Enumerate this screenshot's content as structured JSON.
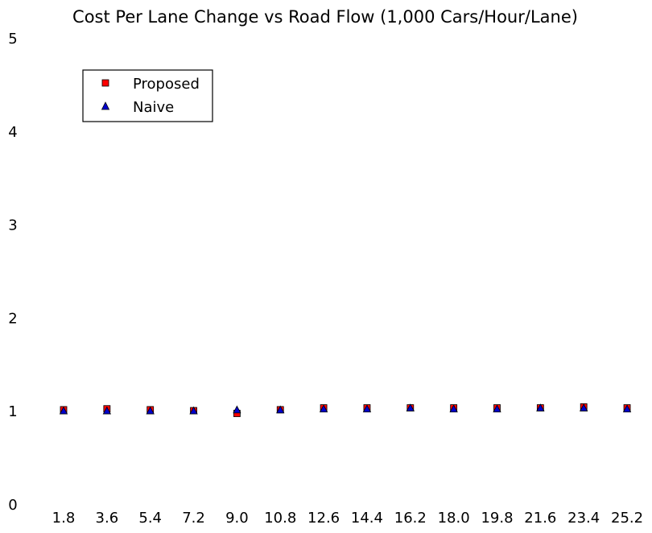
{
  "chart_data": {
    "type": "scatter",
    "title": "Cost Per Lane Change vs Road Flow (1,000 Cars/Hour/Lane)",
    "xlabel": "",
    "ylabel": "",
    "categories": [
      "1.8",
      "3.6",
      "5.4",
      "7.2",
      "9.0",
      "10.8",
      "12.6",
      "14.4",
      "16.2",
      "18.0",
      "19.8",
      "21.6",
      "23.4",
      "25.2"
    ],
    "ylim": [
      0,
      5
    ],
    "yticks": [
      "0",
      "1",
      "2",
      "3",
      "4",
      "5"
    ],
    "grid": false,
    "legend_position": "upper-left",
    "series": [
      {
        "name": "Proposed",
        "marker": "square",
        "color": "#ff0000",
        "values": [
          1.02,
          1.03,
          1.02,
          1.01,
          0.98,
          1.02,
          1.04,
          1.04,
          1.04,
          1.04,
          1.04,
          1.04,
          1.05,
          1.04
        ]
      },
      {
        "name": "Naive",
        "marker": "triangle",
        "color": "#0000cc",
        "values": [
          1.01,
          1.01,
          1.01,
          1.01,
          1.02,
          1.02,
          1.03,
          1.03,
          1.04,
          1.03,
          1.03,
          1.04,
          1.04,
          1.03
        ]
      }
    ]
  }
}
